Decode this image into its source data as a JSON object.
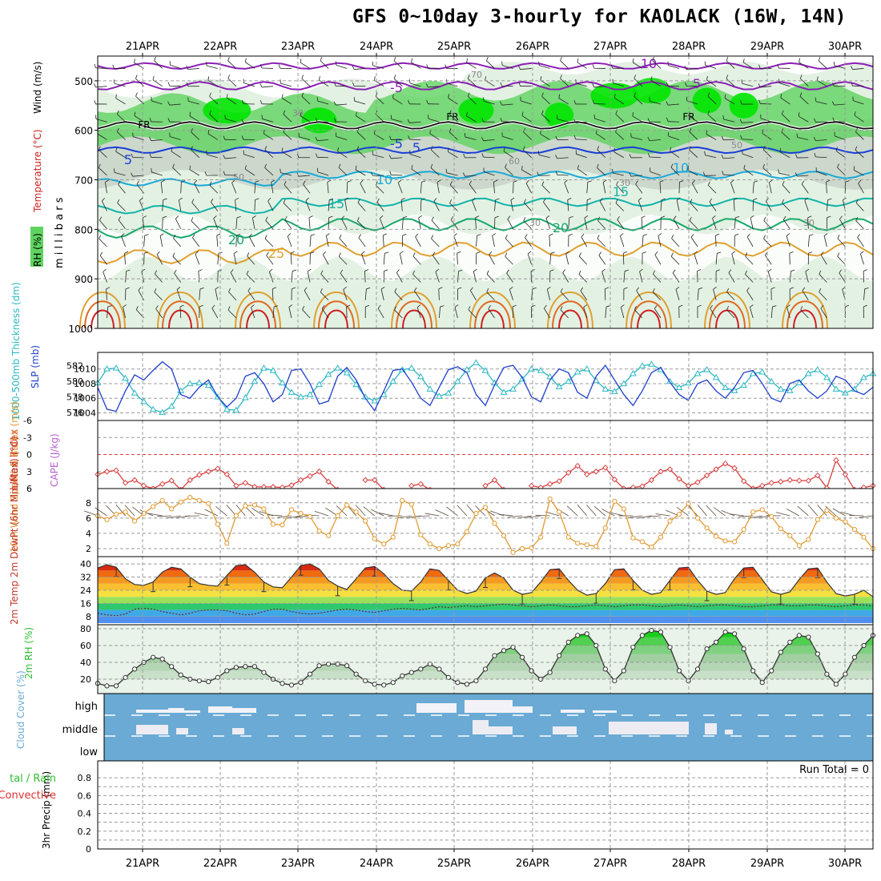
{
  "title": "GFS 0~10day 3-hourly for KAOLACK (16W, 14N)",
  "colors": {
    "rh_light": "#e3f1e3",
    "rh_mid": "#b7d1b7",
    "rh_gray": "#c9d3c9",
    "rh_green": "#5fd35f",
    "rh_bright": "#00e400",
    "temp_purple": "#8a1fb5",
    "temp_blue": "#1a3ed8",
    "temp_cyan": "#19a9d9",
    "temp_teal": "#13b4a8",
    "temp_green": "#19a96a",
    "temp_orange": "#e0a030",
    "temp_red": "#d02020",
    "slp": "#1f3fce",
    "thickness": "#2cb8c4",
    "lifted": "#d84040",
    "wind10": "#e09a30",
    "cloud": "#6aaad4",
    "rh2m": "#2ebd2e"
  },
  "chart_data": [
    {
      "type": "contour",
      "name": "upper_air",
      "ylabel_parts": [
        "RH (%)",
        "Temperature (°C)",
        "Wind (m/s)"
      ],
      "ylabel_units": "m i l l i b a r s",
      "y_ticks": [
        500,
        600,
        700,
        800,
        900,
        1000
      ],
      "ylim": [
        1000,
        450
      ],
      "x_ticks": [
        "21APR",
        "22APR",
        "23APR",
        "24APR",
        "25APR",
        "26APR",
        "27APR",
        "28APR",
        "29APR",
        "30APR"
      ],
      "isotherm_labels": [
        "10",
        "-5",
        "5",
        "-5",
        "FR",
        "FR",
        "FR",
        "5",
        "5",
        "10",
        "10",
        "15",
        "15",
        "20",
        "20",
        "25"
      ],
      "rh_labels": [
        "70",
        "30",
        "50",
        "60",
        "30",
        "30",
        "30",
        "50"
      ]
    },
    {
      "type": "line",
      "name": "thickness_slp",
      "ylabel_left": "1000-500mb Thickness (dm)",
      "ylabel_right": "SLP (mb)",
      "left_ticks": [
        582,
        580,
        578,
        576
      ],
      "right_ticks": [
        1010,
        1008,
        1006,
        1004
      ],
      "series": [
        {
          "name": "SLP",
          "values": [
            1007.5,
            1004.5,
            1004.2,
            1007.0,
            1009.2,
            1008.5,
            1009.8,
            1011.0,
            1010.0,
            1006.5,
            1006.0,
            1007.5,
            1008.5,
            1006.2,
            1004.8,
            1006.0,
            1009.0,
            1009.5,
            1008.0,
            1005.5,
            1006.5,
            1009.8,
            1010.0,
            1008.0,
            1005.2,
            1005.6,
            1009.0,
            1010.2,
            1008.5,
            1006.0,
            1004.3,
            1007.0,
            1009.8,
            1010.0,
            1008.2,
            1006.0,
            1005.0,
            1007.5,
            1009.9,
            1010.3,
            1009.5,
            1006.5,
            1005.0,
            1007.8,
            1010.2,
            1010.5,
            1008.8,
            1006.2,
            1005.5,
            1008.5,
            1010.0,
            1009.5,
            1006.8,
            1006.0,
            1009.0,
            1010.5,
            1008.5,
            1006.5,
            1005.0,
            1007.0,
            1009.5,
            1010.2,
            1008.2,
            1006.5,
            1005.7,
            1008.0,
            1008.5,
            1007.0,
            1006.0,
            1007.5,
            1009.5,
            1009.8,
            1008.0,
            1006.0,
            1005.5,
            1008.0,
            1008.5,
            1007.0,
            1006.0,
            1007.0,
            1009.0,
            1008.5,
            1007.0,
            1006.5,
            1007.5
          ]
        },
        {
          "name": "Thickness",
          "values": [
            579.8,
            581.6,
            581.7,
            580.4,
            578.5,
            577.4,
            576.4,
            576.0,
            576.8,
            578.8,
            579.7,
            579.8,
            579.5,
            578.0,
            576.4,
            576.3,
            577.9,
            580.0,
            581.7,
            581.4,
            579.8,
            578.6,
            578.0,
            578.3,
            579.6,
            580.9,
            581.7,
            581.1,
            579.6,
            578.0,
            577.5,
            578.3,
            580.0,
            581.5,
            581.7,
            580.6,
            579.0,
            578.1,
            578.5,
            580.0,
            581.5,
            582.4,
            581.4,
            579.8,
            578.6,
            579.0,
            580.3,
            581.6,
            581.4,
            580.6,
            579.3,
            580.0,
            581.2,
            581.6,
            580.1,
            579.0,
            578.7,
            579.7,
            581.0,
            582.0,
            582.2,
            581.5,
            580.0,
            579.2,
            579.8,
            581.0,
            581.5,
            580.5,
            579.2,
            578.8,
            579.5,
            581.0,
            581.2,
            580.0,
            579.0,
            578.8,
            579.8,
            581.0,
            581.5,
            580.5,
            579.0,
            578.5,
            579.0,
            580.5,
            581.0
          ]
        }
      ]
    },
    {
      "type": "line",
      "name": "lifted_index_cape",
      "ylabel_left": "Lifted Index",
      "ylabel_right": "CAPE (J/kg)",
      "y_ticks": [
        "-6",
        "-3",
        "0",
        "3",
        "6"
      ],
      "series": [
        {
          "name": "Lifted Index",
          "values": [
            3.5,
            3.0,
            2.8,
            5.0,
            4.5,
            5.5,
            6.0,
            5.2,
            4.6,
            6.2,
            4.5,
            3.6,
            3.0,
            2.5,
            3.5,
            5.5,
            5.0,
            5.7,
            5.7,
            5.7,
            5.8,
            5.4,
            4.5,
            3.8,
            3.0,
            4.8,
            6.2,
            null,
            null,
            4.5,
            4.5,
            6.2,
            null,
            null,
            5.5,
            5.2,
            6.2,
            null,
            null,
            null,
            null,
            null,
            5.5,
            4.5,
            6.2,
            null,
            null,
            5.5,
            5.8,
            5.2,
            4.7,
            3.2,
            2.0,
            3.5,
            3.0,
            2.3,
            4.4,
            6.0,
            5.8,
            5.6,
            4.5,
            3.0,
            2.6,
            4.3,
            5.5,
            4.9,
            3.7,
            2.6,
            1.6,
            2.4,
            4.7,
            6.0,
            5.5,
            5.0,
            4.8,
            4.5,
            4.6,
            4.6,
            3.7,
            5.9,
            1.0,
            3.5,
            6.2,
            5.8,
            5.5
          ]
        },
        {
          "name": "CAPE",
          "values": []
        }
      ]
    },
    {
      "type": "line",
      "name": "wind10m",
      "ylabel": "10m Wind Speed & Barbs (m/s)",
      "y_ticks": [
        8,
        6,
        4,
        2
      ],
      "series": [
        {
          "name": "10m Wind Speed",
          "values": [
            6.3,
            5.8,
            6.5,
            6.8,
            5.6,
            6.6,
            7.5,
            8.3,
            7.2,
            8.1,
            8.7,
            8.3,
            7.9,
            5.2,
            2.7,
            6.3,
            7.6,
            7.7,
            7.2,
            5.2,
            5.1,
            7.1,
            6.6,
            6.2,
            4.3,
            3.7,
            6.3,
            7.7,
            6.8,
            5.6,
            3.3,
            2.6,
            3.5,
            8.3,
            7.8,
            3.8,
            2.6,
            2.0,
            2.4,
            2.6,
            4.2,
            6.6,
            7.4,
            5.3,
            3.7,
            1.5,
            2.0,
            2.1,
            3.5,
            8.5,
            6.8,
            3.5,
            2.7,
            2.5,
            2.3,
            4.7,
            8.2,
            7.2,
            3.4,
            2.9,
            2.2,
            3.5,
            5.6,
            6.5,
            7.9,
            6.0,
            4.7,
            3.6,
            3.0,
            2.9,
            4.5,
            6.8,
            7.1,
            6.2,
            4.6,
            3.7,
            2.4,
            3.2,
            5.8,
            7.0,
            6.0,
            5.5,
            4.5,
            3.5,
            2.0
          ]
        }
      ]
    },
    {
      "type": "area",
      "name": "temp2m",
      "ylabel": "2m Temp 2m DewPt (6hr Min/Max) (°C)",
      "y_ticks": [
        40,
        32,
        24,
        16,
        8
      ],
      "series": [
        {
          "name": "2m Temp",
          "values": [
            37.5,
            39.5,
            38.0,
            31.0,
            27.5,
            27.0,
            29.0,
            35.0,
            38.0,
            37.0,
            32.0,
            28.0,
            27.0,
            26.5,
            33.0,
            39.0,
            39.5,
            35.0,
            29.0,
            26.0,
            25.5,
            32.0,
            39.0,
            40.0,
            37.0,
            30.0,
            26.5,
            24.5,
            31.0,
            37.5,
            38.5,
            34.0,
            28.0,
            24.0,
            23.5,
            29.0,
            37.0,
            36.0,
            30.0,
            24.0,
            22.0,
            23.5,
            31.5,
            34.5,
            31.5,
            24.0,
            21.5,
            22.5,
            29.0,
            36.5,
            37.0,
            30.0,
            24.0,
            21.0,
            22.0,
            28.0,
            36.5,
            37.0,
            30.0,
            24.0,
            21.5,
            22.5,
            30.0,
            37.5,
            38.0,
            30.0,
            23.5,
            21.5,
            22.5,
            31.0,
            37.5,
            38.0,
            30.5,
            23.0,
            21.5,
            23.0,
            30.5,
            37.0,
            37.5,
            29.0,
            22.0,
            20.5,
            21.5,
            24.0,
            20.0
          ]
        },
        {
          "name": "2m DewPt",
          "values": [
            10.0,
            9.0,
            8.5,
            9.5,
            12.5,
            13.0,
            12.5,
            11.0,
            10.0,
            9.0,
            10.0,
            11.5,
            12.0,
            12.0,
            11.5,
            10.0,
            9.0,
            9.5,
            11.0,
            12.5,
            12.5,
            11.0,
            10.0,
            9.5,
            10.0,
            11.0,
            12.0,
            12.5,
            12.0,
            11.0,
            10.5,
            11.5,
            12.5,
            13.0,
            12.5,
            12.0,
            13.0,
            14.0,
            13.5,
            14.0,
            14.5,
            14.0,
            14.5,
            15.0,
            15.5,
            15.0,
            14.5,
            14.0,
            14.5,
            15.0,
            14.5,
            14.0,
            14.0,
            14.5,
            15.0,
            14.5,
            14.0,
            14.5,
            15.0,
            15.0,
            14.5,
            14.0,
            14.5,
            15.0,
            14.5,
            14.0,
            14.5,
            15.0,
            15.0,
            14.5,
            14.0,
            14.0,
            14.5,
            15.0,
            15.0,
            14.5,
            14.5,
            15.0,
            15.0,
            14.5,
            14.0,
            14.5,
            15.0,
            15.0,
            14.5
          ]
        }
      ]
    },
    {
      "type": "area",
      "name": "rh2m",
      "ylabel": "2m RH (%)",
      "y_ticks": [
        80,
        60,
        40,
        20
      ],
      "series": [
        {
          "name": "2m RH",
          "values": [
            15,
            12,
            12,
            22,
            32,
            40,
            46,
            44,
            35,
            25,
            20,
            18,
            17,
            22,
            30,
            34,
            35,
            35,
            28,
            20,
            15,
            13,
            16,
            26,
            36,
            38,
            38,
            36,
            26,
            18,
            14,
            13,
            16,
            24,
            28,
            32,
            38,
            32,
            22,
            16,
            14,
            18,
            32,
            48,
            54,
            58,
            46,
            30,
            20,
            28,
            48,
            64,
            72,
            74,
            60,
            32,
            18,
            30,
            58,
            72,
            78,
            76,
            58,
            30,
            18,
            32,
            56,
            64,
            76,
            74,
            56,
            30,
            16,
            30,
            52,
            64,
            72,
            70,
            50,
            26,
            14,
            26,
            46,
            60,
            72
          ]
        }
      ]
    },
    {
      "type": "heatmap",
      "name": "cloud_cover",
      "ylabel": "Cloud Cover (%)",
      "y_ticks": [
        "high",
        "middle",
        "low"
      ]
    },
    {
      "type": "bar",
      "name": "precip",
      "ylabel": "3hr Precip (mm)",
      "ylabel_left_parts": [
        "tal / Rain",
        "Convective"
      ],
      "annotation": "Run Total = 0",
      "y_ticks": [
        "0.8",
        "0.6",
        "0.4",
        "0.2",
        "0"
      ],
      "ylim": [
        0,
        0.9
      ],
      "values": []
    }
  ]
}
